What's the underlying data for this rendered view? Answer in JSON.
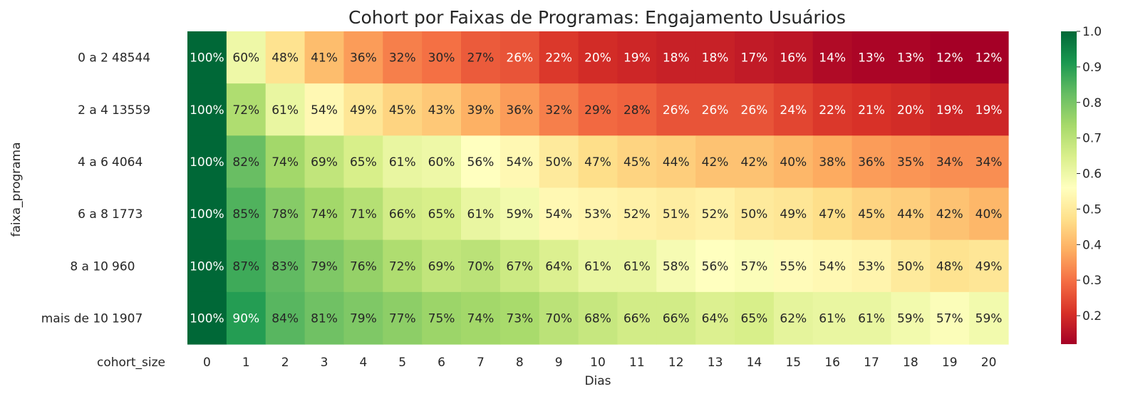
{
  "chart_data": {
    "type": "heatmap",
    "title": "Cohort por Faixas de Programas: Engajamento Usuários",
    "xlabel": "Dias",
    "ylabel": "faixa_programa",
    "cohort_size_label": "cohort_size",
    "x": [
      0,
      1,
      2,
      3,
      4,
      5,
      6,
      7,
      8,
      9,
      10,
      11,
      12,
      13,
      14,
      15,
      16,
      17,
      18,
      19,
      20
    ],
    "rows": [
      {
        "faixa": "0 a 2",
        "cohort_size": "48544",
        "values": [
          1.0,
          0.6,
          0.48,
          0.41,
          0.36,
          0.32,
          0.3,
          0.27,
          0.26,
          0.22,
          0.2,
          0.19,
          0.18,
          0.18,
          0.17,
          0.16,
          0.14,
          0.13,
          0.13,
          0.12,
          0.12
        ]
      },
      {
        "faixa": "2 a 4",
        "cohort_size": "13559",
        "values": [
          1.0,
          0.72,
          0.61,
          0.54,
          0.49,
          0.45,
          0.43,
          0.39,
          0.36,
          0.32,
          0.29,
          0.28,
          0.26,
          0.26,
          0.26,
          0.24,
          0.22,
          0.21,
          0.2,
          0.19,
          0.19
        ]
      },
      {
        "faixa": "4 a 6",
        "cohort_size": "4064",
        "values": [
          1.0,
          0.82,
          0.74,
          0.69,
          0.65,
          0.61,
          0.6,
          0.56,
          0.54,
          0.5,
          0.47,
          0.45,
          0.44,
          0.42,
          0.42,
          0.4,
          0.38,
          0.36,
          0.35,
          0.34,
          0.34
        ]
      },
      {
        "faixa": "6 a 8",
        "cohort_size": "1773",
        "values": [
          1.0,
          0.85,
          0.78,
          0.74,
          0.71,
          0.66,
          0.65,
          0.61,
          0.59,
          0.54,
          0.53,
          0.52,
          0.51,
          0.52,
          0.5,
          0.49,
          0.47,
          0.45,
          0.44,
          0.42,
          0.4
        ]
      },
      {
        "faixa": "8 a 10",
        "cohort_size": "960",
        "values": [
          1.0,
          0.87,
          0.83,
          0.79,
          0.76,
          0.72,
          0.69,
          0.7,
          0.67,
          0.64,
          0.61,
          0.61,
          0.58,
          0.56,
          0.57,
          0.55,
          0.54,
          0.53,
          0.5,
          0.48,
          0.49
        ]
      },
      {
        "faixa": "mais de 10",
        "cohort_size": "1907",
        "values": [
          1.0,
          0.9,
          0.84,
          0.81,
          0.79,
          0.77,
          0.75,
          0.74,
          0.73,
          0.7,
          0.68,
          0.66,
          0.66,
          0.64,
          0.65,
          0.62,
          0.61,
          0.61,
          0.59,
          0.57,
          0.59
        ]
      }
    ],
    "value_format": "percent",
    "colormap": "RdYlGn",
    "colorbar": {
      "min": 0.12,
      "max": 1.0,
      "ticks": [
        0.2,
        0.3,
        0.4,
        0.5,
        0.6,
        0.7,
        0.8,
        0.9,
        1.0
      ]
    },
    "grid": false,
    "legend": "colorbar-right"
  }
}
